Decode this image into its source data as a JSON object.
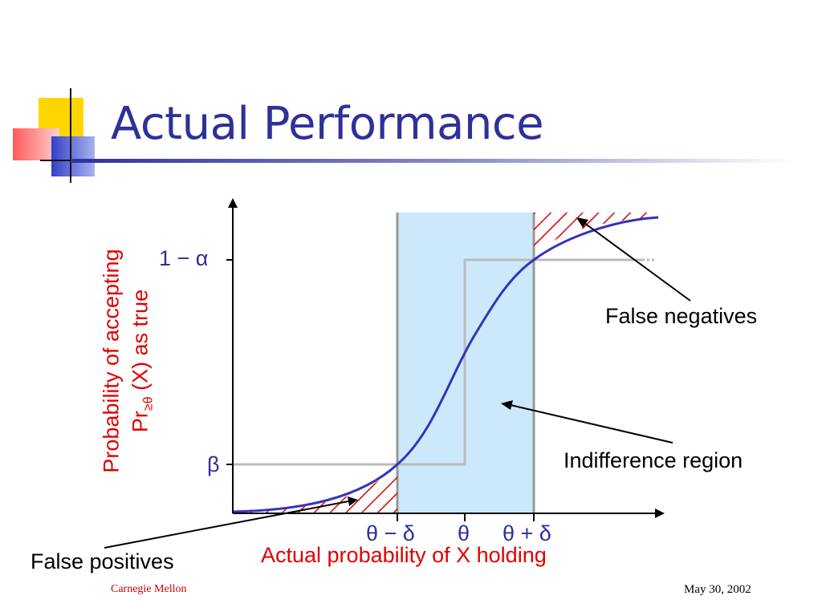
{
  "slide": {
    "title": "Actual Performance",
    "footer_left": "Carnegie Mellon",
    "footer_right": "May 30, 2002"
  },
  "diagram": {
    "y_axis_label_line1": "Probability of accepting",
    "y_axis_label_line2_prefix": "Pr",
    "y_axis_label_line2_sub": "≥θ",
    "y_axis_label_line2_suffix": " (X) as true",
    "x_axis_label": "Actual probability of X holding",
    "y_tick_top": "1 − α",
    "y_tick_bottom": "β",
    "x_tick_left": "θ − δ",
    "x_tick_mid": "θ",
    "x_tick_right": "θ + δ",
    "annotation_false_negatives": "False negatives",
    "annotation_indifference": "Indifference region",
    "annotation_false_positives": "False positives",
    "colors": {
      "region_fill": "#cce9fb",
      "curve": "#3333bb",
      "hatch": "#e00000",
      "ideal_step": "#bbbbbb",
      "text_blue": "#2e3199",
      "text_red": "#e00000"
    }
  }
}
